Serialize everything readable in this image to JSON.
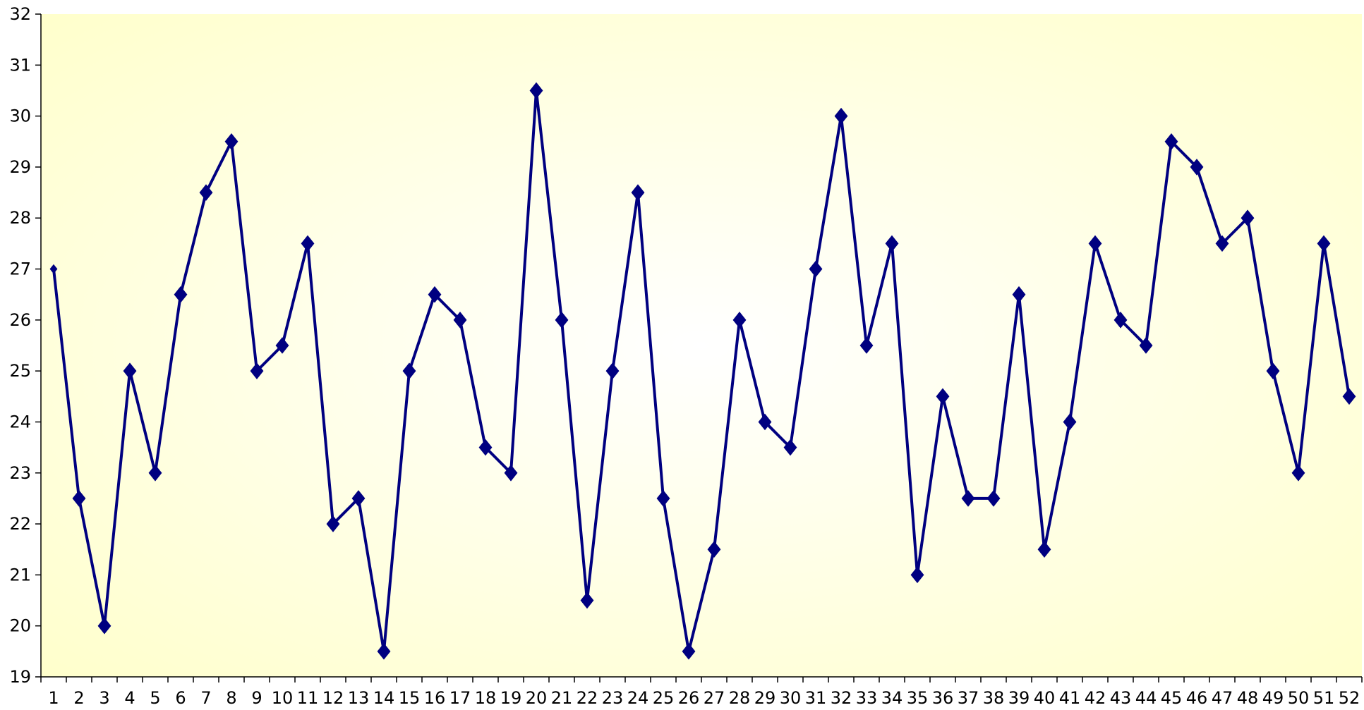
{
  "chart_data": {
    "type": "line",
    "title": "",
    "xlabel": "",
    "ylabel": "",
    "x": [
      1,
      2,
      3,
      4,
      5,
      6,
      7,
      8,
      9,
      10,
      11,
      12,
      13,
      14,
      15,
      16,
      17,
      18,
      19,
      20,
      21,
      22,
      23,
      24,
      25,
      26,
      27,
      28,
      29,
      30,
      31,
      32,
      33,
      34,
      35,
      36,
      37,
      38,
      39,
      40,
      41,
      42,
      43,
      44,
      45,
      46,
      47,
      48,
      49,
      50,
      51,
      52
    ],
    "series": [
      {
        "values": [
          27,
          22.5,
          20,
          25,
          23,
          26.5,
          28.5,
          29.5,
          25,
          25.5,
          27.5,
          22,
          22.5,
          19.5,
          25,
          26.5,
          26,
          23.5,
          23,
          30.5,
          26,
          20.5,
          25,
          28.5,
          22.5,
          19.5,
          21.5,
          26,
          24,
          23.5,
          27,
          30,
          25.5,
          27.5,
          21,
          24.5,
          22.5,
          22.5,
          26.5,
          21.5,
          24,
          27.5,
          26,
          25.5,
          29.5,
          29,
          27.5,
          28,
          25,
          23,
          27.5,
          24.5
        ],
        "color": "#000080",
        "marker": "diamond"
      }
    ],
    "ylim": [
      19,
      32
    ],
    "y_ticks": [
      19,
      20,
      21,
      22,
      23,
      24,
      25,
      26,
      27,
      28,
      29,
      30,
      31,
      32
    ],
    "grid": false,
    "legend": "none",
    "plot_background": {
      "center_color": "#ffffff",
      "edge_color": "#ffffcc"
    }
  }
}
